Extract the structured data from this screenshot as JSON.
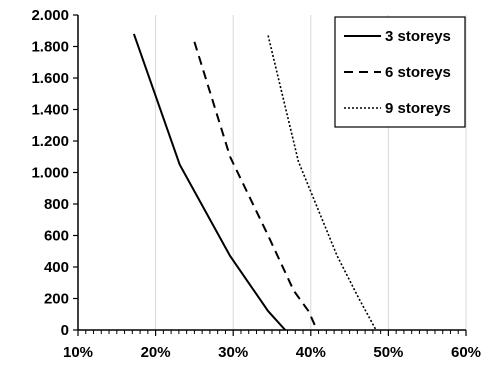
{
  "chart_data": {
    "type": "line",
    "title": "",
    "xlabel": "",
    "ylabel": "",
    "xlim": [
      0.1,
      0.6
    ],
    "ylim": [
      0,
      2000
    ],
    "x_ticks": [
      0.1,
      0.2,
      0.3,
      0.4,
      0.5,
      0.6
    ],
    "x_tick_labels": [
      "10%",
      "20%",
      "30%",
      "40%",
      "50%",
      "60%"
    ],
    "y_ticks": [
      0,
      200,
      400,
      600,
      800,
      1000,
      1200,
      1400,
      1600,
      1800,
      2000
    ],
    "y_tick_labels": [
      "0",
      "200",
      "400",
      "600",
      "800",
      "1.000",
      "1.200",
      "1.400",
      "1.600",
      "1.800",
      "2.000"
    ],
    "grid": "vertical major gridlines",
    "legend_position": "top-right",
    "series": [
      {
        "name": "3 storeys",
        "line_style": "solid",
        "points": [
          [
            0.172,
            1880
          ],
          [
            0.231,
            1050
          ],
          [
            0.296,
            470
          ],
          [
            0.345,
            120
          ],
          [
            0.367,
            0
          ]
        ]
      },
      {
        "name": "6 storeys",
        "line_style": "dashed",
        "points": [
          [
            0.25,
            1830
          ],
          [
            0.296,
            1100
          ],
          [
            0.345,
            600
          ],
          [
            0.378,
            250
          ],
          [
            0.397,
            120
          ],
          [
            0.408,
            0
          ]
        ]
      },
      {
        "name": "9 storeys",
        "line_style": "dotted",
        "points": [
          [
            0.345,
            1870
          ],
          [
            0.384,
            1070
          ],
          [
            0.434,
            470
          ],
          [
            0.462,
            200
          ],
          [
            0.484,
            0
          ]
        ]
      }
    ]
  }
}
